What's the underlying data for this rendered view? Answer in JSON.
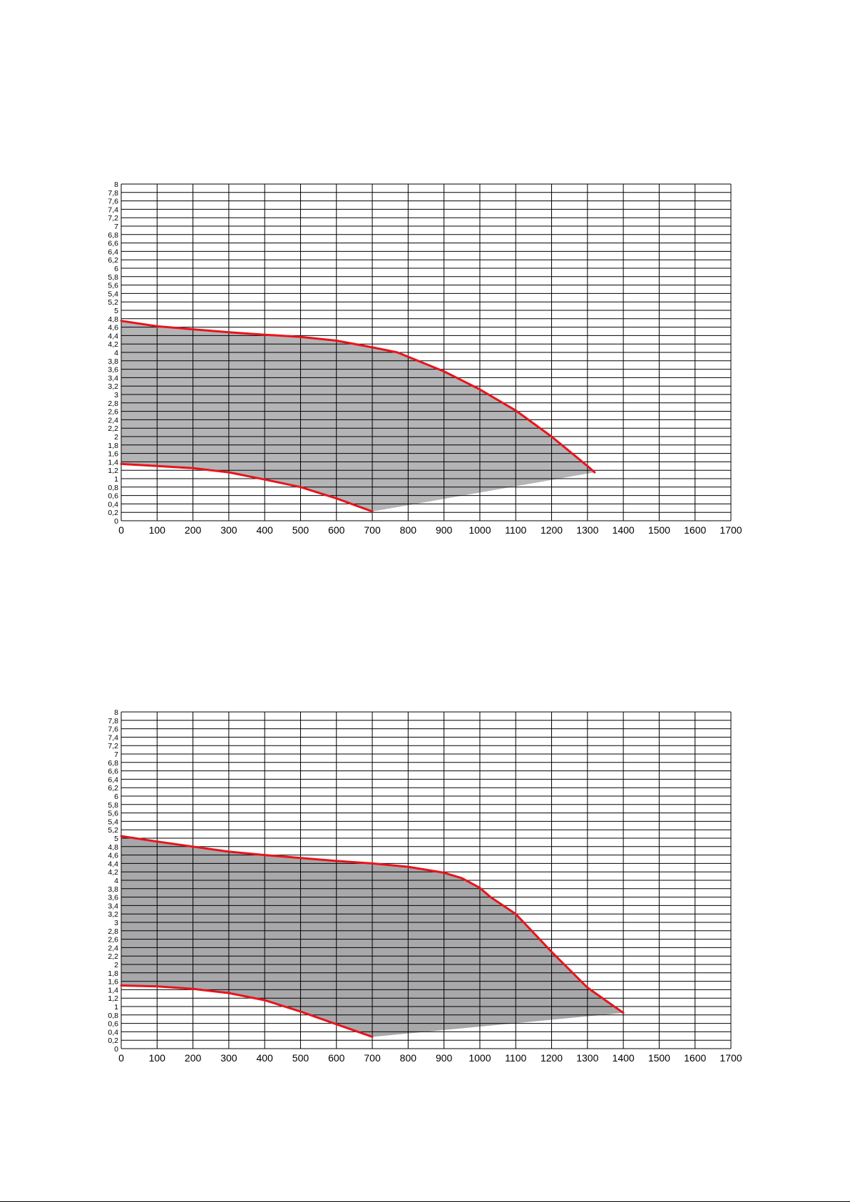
{
  "chart_data": [
    {
      "type": "area",
      "title": "",
      "xlabel": "",
      "ylabel": "",
      "xlim": [
        0,
        1700
      ],
      "ylim": [
        0,
        8
      ],
      "grid": true,
      "x_ticks": [
        "0",
        "100",
        "200",
        "300",
        "400",
        "500",
        "600",
        "700",
        "800",
        "900",
        "1000",
        "1100",
        "1200",
        "1300",
        "1400",
        "1500",
        "1600",
        "1700"
      ],
      "y_ticks": [
        "0",
        "0,2",
        "0,4",
        "0,6",
        "0,8",
        "1",
        "1,2",
        "1,4",
        "1,6",
        "1,8",
        "2",
        "2,2",
        "2,4",
        "2,6",
        "2,8",
        "3",
        "3,2",
        "3,4",
        "3,6",
        "3,8",
        "4",
        "4,2",
        "4,4",
        "4,6",
        "4,8",
        "5",
        "5,2",
        "5,4",
        "5,6",
        "5,8",
        "6",
        "6,2",
        "6,4",
        "6,6",
        "6,8",
        "7",
        "7,2",
        "7,4",
        "7,6",
        "7,8",
        "8"
      ],
      "fill_color": "#b4b4b6",
      "line_color": "#e8141c",
      "upper_curve": {
        "x": [
          0,
          100,
          200,
          300,
          400,
          500,
          600,
          700,
          770,
          900,
          1000,
          1100,
          1200,
          1300,
          1320
        ],
        "y": [
          4.75,
          4.62,
          4.55,
          4.48,
          4.42,
          4.37,
          4.28,
          4.12,
          4.0,
          3.55,
          3.12,
          2.62,
          2.0,
          1.3,
          1.15
        ]
      },
      "lower_curve": {
        "x": [
          0,
          100,
          200,
          300,
          400,
          500,
          600,
          700
        ],
        "y": [
          1.35,
          1.3,
          1.25,
          1.15,
          0.98,
          0.8,
          0.53,
          0.22
        ]
      },
      "lower_boundary": {
        "x": [
          700,
          1320
        ],
        "y": [
          0.22,
          1.15
        ]
      }
    },
    {
      "type": "area",
      "title": "",
      "xlabel": "",
      "ylabel": "",
      "xlim": [
        0,
        1700
      ],
      "ylim": [
        0,
        8
      ],
      "grid": true,
      "x_ticks": [
        "0",
        "100",
        "200",
        "300",
        "400",
        "500",
        "600",
        "700",
        "800",
        "900",
        "1000",
        "1100",
        "1200",
        "1300",
        "1400",
        "1500",
        "1600",
        "1700"
      ],
      "y_ticks": [
        "0",
        "0,2",
        "0,4",
        "0,6",
        "0,8",
        "1",
        "1,2",
        "1,4",
        "1,6",
        "1,8",
        "2",
        "2,2",
        "2,4",
        "2,6",
        "2,8",
        "3",
        "3,2",
        "3,4",
        "3,6",
        "3,8",
        "4",
        "4,2",
        "4,4",
        "4,6",
        "4,8",
        "5",
        "5,2",
        "5,4",
        "5,6",
        "5,8",
        "6",
        "6,2",
        "6,4",
        "6,6",
        "6,8",
        "7",
        "7,2",
        "7,4",
        "7,6",
        "7,8",
        "8"
      ],
      "fill_color": "#a8a8aa",
      "line_color": "#e8141c",
      "upper_curve": {
        "x": [
          0,
          100,
          200,
          300,
          400,
          500,
          600,
          700,
          800,
          900,
          950,
          1000,
          1030,
          1100,
          1200,
          1300,
          1400
        ],
        "y": [
          5.05,
          4.92,
          4.8,
          4.68,
          4.6,
          4.53,
          4.46,
          4.4,
          4.32,
          4.18,
          4.05,
          3.82,
          3.6,
          3.2,
          2.3,
          1.45,
          0.85
        ]
      },
      "lower_curve": {
        "x": [
          0,
          100,
          200,
          300,
          400,
          500,
          600,
          700
        ],
        "y": [
          1.5,
          1.48,
          1.42,
          1.32,
          1.15,
          0.88,
          0.58,
          0.28
        ]
      },
      "lower_boundary": {
        "x": [
          700,
          1400
        ],
        "y": [
          0.28,
          0.85
        ]
      }
    }
  ]
}
